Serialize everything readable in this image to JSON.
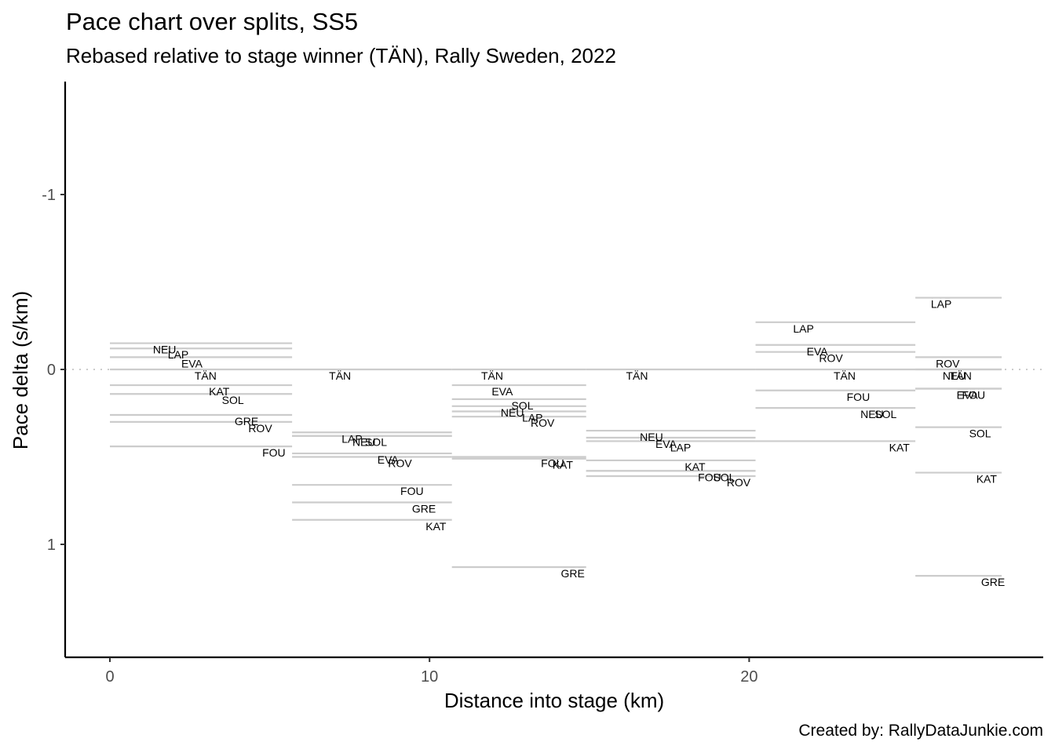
{
  "title": "Pace chart over splits, SS5",
  "subtitle": "Rebased relative to stage winner (TÄN), Rally Sweden, 2022",
  "caption": "Created by: RallyDataJunkie.com",
  "colors": {
    "segment": "#cccccc",
    "axis": "#000000",
    "tick_text": "#4d4d4d",
    "zero_line": "#cccccc"
  },
  "chart_data": {
    "type": "segment",
    "title": "Pace chart over splits, SS5",
    "subtitle": "Rebased relative to stage winner (TÄN), Rally Sweden, 2022",
    "xlabel": "Distance into stage (km)",
    "ylabel": "Pace delta (s/km)",
    "xlim": [
      -1.4,
      29.2
    ],
    "ylim": [
      1.65,
      -1.65
    ],
    "y_reversed": true,
    "xticks": [
      0,
      10,
      20
    ],
    "xtick_labels": [
      "0",
      "10",
      "20"
    ],
    "yticks": [
      -1,
      0,
      1
    ],
    "ytick_labels": [
      "-1",
      "0",
      "1"
    ],
    "zero_line": 0,
    "splits": [
      {
        "start": 0,
        "end": 5.7,
        "drivers": [
          {
            "code": "NEU",
            "pace": -0.15
          },
          {
            "code": "LAP",
            "pace": -0.12
          },
          {
            "code": "EVA",
            "pace": -0.07
          },
          {
            "code": "TÄN",
            "pace": 0.0
          },
          {
            "code": "KAT",
            "pace": 0.09
          },
          {
            "code": "SOL",
            "pace": 0.14
          },
          {
            "code": "GRE",
            "pace": 0.26
          },
          {
            "code": "ROV",
            "pace": 0.3
          },
          {
            "code": "FOU",
            "pace": 0.44
          }
        ]
      },
      {
        "start": 5.7,
        "end": 10.7,
        "drivers": [
          {
            "code": "TÄN",
            "pace": 0.0
          },
          {
            "code": "LAP",
            "pace": 0.36
          },
          {
            "code": "NEU",
            "pace": 0.38
          },
          {
            "code": "SOL",
            "pace": 0.38
          },
          {
            "code": "EVA",
            "pace": 0.48
          },
          {
            "code": "ROV",
            "pace": 0.5
          },
          {
            "code": "FOU",
            "pace": 0.66
          },
          {
            "code": "GRE",
            "pace": 0.76
          },
          {
            "code": "KAT",
            "pace": 0.86
          }
        ]
      },
      {
        "start": 10.7,
        "end": 14.9,
        "drivers": [
          {
            "code": "TÄN",
            "pace": 0.0
          },
          {
            "code": "EVA",
            "pace": 0.09
          },
          {
            "code": "NEU",
            "pace": 0.21
          },
          {
            "code": "SOL",
            "pace": 0.17
          },
          {
            "code": "LAP",
            "pace": 0.24
          },
          {
            "code": "ROV",
            "pace": 0.27
          },
          {
            "code": "FOU",
            "pace": 0.5
          },
          {
            "code": "KAT",
            "pace": 0.51
          },
          {
            "code": "GRE",
            "pace": 1.13
          }
        ]
      },
      {
        "start": 14.9,
        "end": 20.2,
        "drivers": [
          {
            "code": "TÄN",
            "pace": 0.0
          },
          {
            "code": "NEU",
            "pace": 0.35
          },
          {
            "code": "EVA",
            "pace": 0.39
          },
          {
            "code": "LAP",
            "pace": 0.41
          },
          {
            "code": "KAT",
            "pace": 0.52
          },
          {
            "code": "FOU",
            "pace": 0.58
          },
          {
            "code": "SOL",
            "pace": 0.58
          },
          {
            "code": "ROV",
            "pace": 0.61
          }
        ]
      },
      {
        "start": 20.2,
        "end": 25.2,
        "drivers": [
          {
            "code": "LAP",
            "pace": -0.27
          },
          {
            "code": "EVA",
            "pace": -0.14
          },
          {
            "code": "ROV",
            "pace": -0.1
          },
          {
            "code": "TÄN",
            "pace": 0.0
          },
          {
            "code": "FOU",
            "pace": 0.12
          },
          {
            "code": "NEU",
            "pace": 0.22
          },
          {
            "code": "SOL",
            "pace": 0.22
          },
          {
            "code": "KAT",
            "pace": 0.41
          }
        ]
      },
      {
        "start": 25.2,
        "end": 27.9,
        "drivers": [
          {
            "code": "LAP",
            "pace": -0.41
          },
          {
            "code": "ROV",
            "pace": -0.07
          },
          {
            "code": "NEU",
            "pace": 0.0
          },
          {
            "code": "TÄN",
            "pace": 0.0
          },
          {
            "code": "EVA",
            "pace": 0.11
          },
          {
            "code": "FOU",
            "pace": 0.11
          },
          {
            "code": "SOL",
            "pace": 0.33
          },
          {
            "code": "KAT",
            "pace": 0.59
          },
          {
            "code": "GRE",
            "pace": 1.18
          }
        ]
      }
    ]
  }
}
